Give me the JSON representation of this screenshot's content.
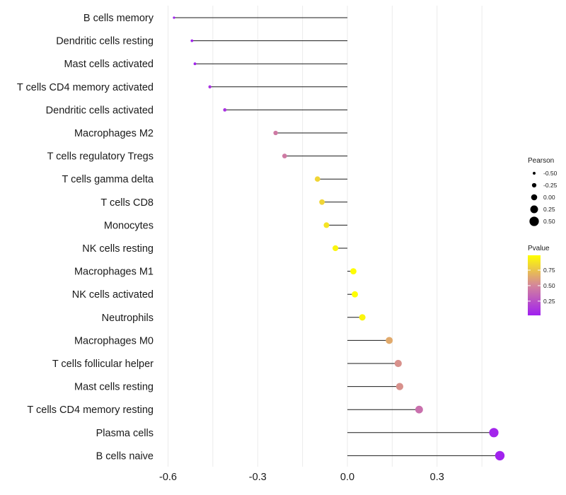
{
  "chart_data": {
    "type": "lollipop",
    "title": "",
    "xlabel": "",
    "ylabel": "",
    "xlim": [
      -0.62,
      0.53
    ],
    "x_ticks": [
      -0.6,
      -0.3,
      0.0,
      0.3
    ],
    "x_tick_labels": [
      "-0.6",
      "-0.3",
      "0.0",
      "0.3"
    ],
    "grid": true,
    "categories": [
      "B cells memory",
      "Dendritic cells resting",
      "Mast cells activated",
      "T cells CD4 memory activated",
      "Dendritic cells activated",
      "Macrophages M2",
      "T cells regulatory  Tregs",
      "T cells gamma delta",
      "T cells CD8",
      "Monocytes",
      "NK cells resting",
      "Macrophages M1",
      "NK cells activated",
      "Neutrophils",
      "Macrophages M0",
      "T cells follicular helper",
      "Mast cells resting",
      "T cells CD4 memory resting",
      "Plasma cells",
      "B cells naive"
    ],
    "pearson": [
      -0.58,
      -0.52,
      -0.51,
      -0.46,
      -0.41,
      -0.24,
      -0.21,
      -0.1,
      -0.085,
      -0.07,
      -0.04,
      0.02,
      0.025,
      0.05,
      0.14,
      0.17,
      0.175,
      0.24,
      0.49,
      0.51
    ],
    "pvalue": [
      0.02,
      0.03,
      0.04,
      0.1,
      0.1,
      0.45,
      0.45,
      0.82,
      0.82,
      0.88,
      0.95,
      0.98,
      0.99,
      0.95,
      0.65,
      0.55,
      0.55,
      0.4,
      0.05,
      0.03
    ],
    "legend": {
      "size_title": "Pearson",
      "size_values": [
        -0.5,
        -0.25,
        0.0,
        0.25,
        0.5
      ],
      "size_labels": [
        "-0.50",
        "-0.25",
        "0.00",
        "0.25",
        "0.50"
      ],
      "color_title": "Pvalue",
      "color_values": [
        0.25,
        0.5,
        0.75
      ],
      "color_labels": [
        "0.25",
        "0.50",
        "0.75"
      ],
      "color_range": [
        0.02,
        0.99
      ],
      "color_low": "#a020f0",
      "color_mid": "#d4869a",
      "color_high": "#ffff00",
      "placement": "right"
    },
    "colors": {
      "stem": "#1a1a1a",
      "grid": "#ebebeb",
      "legend_point": "#000000"
    }
  }
}
